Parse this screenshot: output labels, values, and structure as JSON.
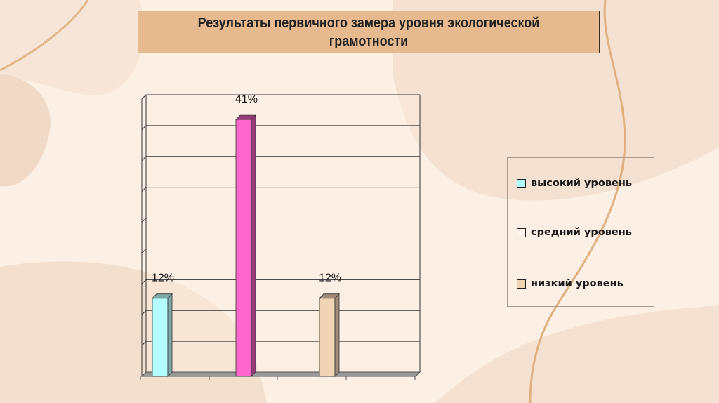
{
  "slide": {
    "title": "Результаты первичного замера уровня экологической грамотности"
  },
  "chart_data": {
    "type": "bar",
    "title": "Результаты первичного замера уровня экологической грамотности",
    "xlabel": "",
    "ylabel": "",
    "ylim": [
      0,
      45
    ],
    "grid": true,
    "grid_step": 5,
    "legend_position": "right",
    "three_d": true,
    "series": [
      {
        "name": "высокий уровень",
        "value": 12,
        "label": "12%",
        "color": "#b3fdff",
        "side_color": "#7fa8a8",
        "legend_color": "#b3fdff"
      },
      {
        "name": "средний уровень",
        "value": 41,
        "label": "41%",
        "color": "#ff66cc",
        "side_color": "#993d7a",
        "legend_color": "#fdf3ea"
      },
      {
        "name": "низкий уровень",
        "value": 12,
        "label": "12%",
        "color": "#f1d3b5",
        "side_color": "#a08a78",
        "legend_color": "#f1d3b5"
      }
    ]
  },
  "colors": {
    "background": "#fcefe4",
    "title_box": "#e6b98e",
    "decor_line": "#e0b080"
  }
}
